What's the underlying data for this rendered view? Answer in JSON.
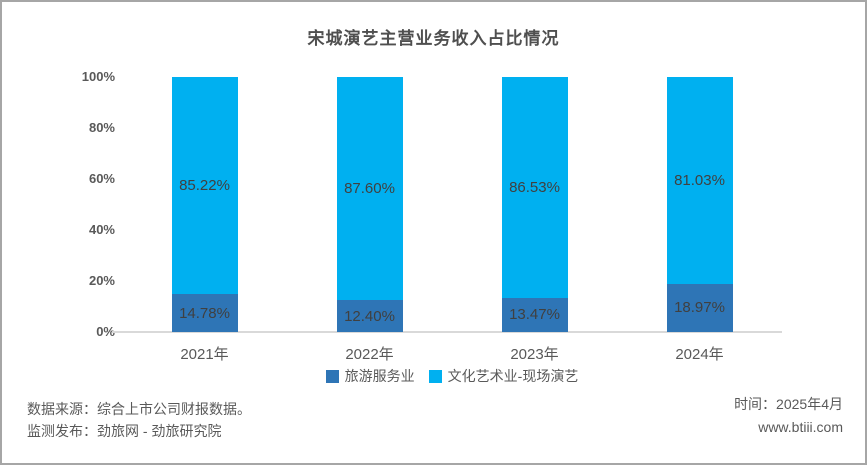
{
  "window": {
    "border_color": "#a6a6a6",
    "background": "#ffffff"
  },
  "chart_data": {
    "type": "bar",
    "stacked": true,
    "orientation": "vertical",
    "title": "宋城演艺主营业务收入占比情况",
    "categories": [
      "2021年",
      "2022年",
      "2023年",
      "2024年"
    ],
    "series": [
      {
        "name": "旅游服务业",
        "color": "#2e75b6",
        "values": [
          14.78,
          12.4,
          13.47,
          18.97
        ],
        "labels": [
          "14.78%",
          "12.40%",
          "13.47%",
          "18.97%"
        ]
      },
      {
        "name": "文化艺术业-现场演艺",
        "color": "#00b0f0",
        "values": [
          85.22,
          87.6,
          86.53,
          81.03
        ],
        "labels": [
          "85.22%",
          "87.60%",
          "86.53%",
          "81.03%"
        ]
      }
    ],
    "y_axis": {
      "ticks": [
        "0%",
        "20%",
        "40%",
        "60%",
        "80%",
        "100%"
      ],
      "tick_values": [
        0,
        20,
        40,
        60,
        80,
        100
      ],
      "min": 0,
      "max": 100
    },
    "grid": false,
    "legend_position": "bottom",
    "axis_line_color": "#d9d9d9",
    "label_color": "#404040",
    "tick_label_color": "#595959"
  },
  "footer": {
    "source_line": "数据来源：综合上市公司财报数据。",
    "publisher_line": "监测发布：劲旅网 - 劲旅研究院",
    "time_line": "时间：2025年4月",
    "website": "www.btiii.com"
  }
}
